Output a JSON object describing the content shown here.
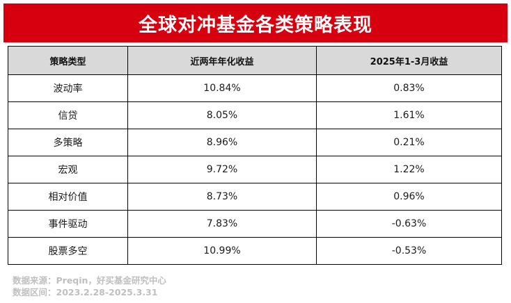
{
  "title": "全球对冲基金各类策略表现",
  "table": {
    "headers": [
      "策略类型",
      "近两年年化收益",
      "2025年1-3月收益"
    ],
    "rows": [
      [
        "波动率",
        "10.84%",
        "0.83%"
      ],
      [
        "信贷",
        "8.05%",
        "1.61%"
      ],
      [
        "多策略",
        "8.96%",
        "0.21%"
      ],
      [
        "宏观",
        "9.72%",
        "1.22%"
      ],
      [
        "相对价值",
        "8.73%",
        "0.96%"
      ],
      [
        "事件驱动",
        "7.83%",
        "-0.63%"
      ],
      [
        "股票多空",
        "10.99%",
        "-0.53%"
      ]
    ]
  },
  "footer": {
    "source": "数据来源：Preqin，好买基金研究中心",
    "period": "数据区间：2023.2.28-2025.3.31"
  },
  "colors": {
    "title_bg": "#d7000f",
    "header_bg": "#d9d9d9",
    "footer_text": "#bfbfbf"
  }
}
